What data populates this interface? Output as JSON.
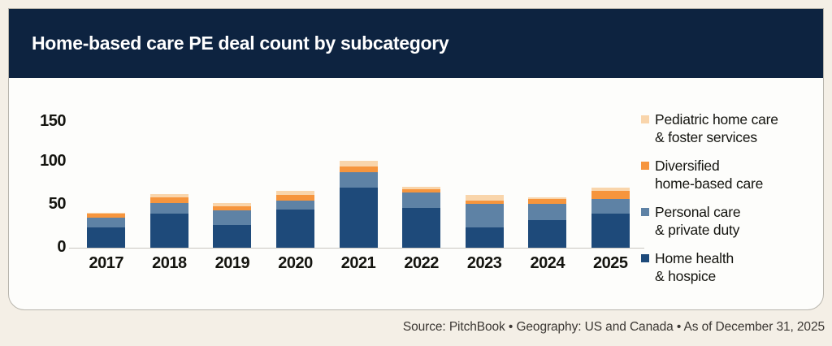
{
  "header": {
    "title": "Home-based care PE deal count by subcategory"
  },
  "chart_data": {
    "type": "bar",
    "stacked": true,
    "title": "Home-based care PE deal count by subcategory",
    "xlabel": "",
    "ylabel": "",
    "categories": [
      "2017",
      "2018",
      "2019",
      "2020",
      "2021",
      "2022",
      "2023",
      "2024",
      "2025"
    ],
    "series": [
      {
        "name": "Home health & hospice",
        "color": "#1e4a7a",
        "values": [
          24,
          41,
          27,
          46,
          72,
          47,
          24,
          33,
          41
        ]
      },
      {
        "name": "Personal care & private duty",
        "color": "#5e82a5",
        "values": [
          12,
          12,
          18,
          10,
          18,
          19,
          28,
          19,
          17
        ]
      },
      {
        "name": "Diversified home-based care",
        "color": "#f6953d",
        "values": [
          5,
          7,
          4,
          7,
          7,
          4,
          4,
          6,
          10
        ]
      },
      {
        "name": "Pediatric home care & foster services",
        "color": "#f9d5ab",
        "values": [
          1,
          4,
          4,
          5,
          7,
          3,
          7,
          2,
          4
        ]
      }
    ],
    "totals": [
      42,
      64,
      53,
      68,
      104,
      73,
      63,
      60,
      72
    ],
    "ylim": [
      0,
      160
    ],
    "y_ticks_values": [
      0,
      50,
      100,
      150
    ],
    "grid": false,
    "legend_position": "right"
  },
  "y_axis": {
    "ticks": [
      "150",
      "100",
      "50",
      "0"
    ]
  },
  "legend": {
    "items": [
      {
        "line1": "Pediatric home care",
        "line2": "& foster services",
        "color": "#f9d5ab"
      },
      {
        "line1": "Diversified",
        "line2": "home-based care",
        "color": "#f6953d"
      },
      {
        "line1": "Personal care",
        "line2": "& private duty",
        "color": "#5e82a5"
      },
      {
        "line1": "Home health",
        "line2": "& hospice",
        "color": "#1e4a7a"
      }
    ]
  },
  "footer": {
    "text": "Source: PitchBook  •  Geography: US and Canada  •  As of December 31, 2025"
  }
}
